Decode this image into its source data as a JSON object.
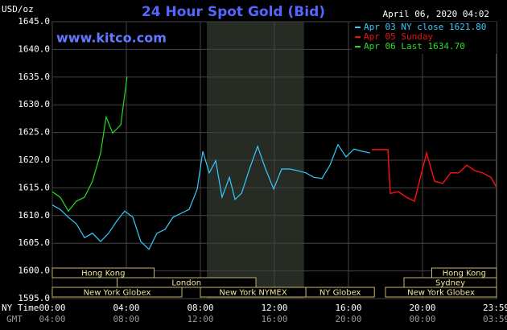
{
  "chart_data": {
    "type": "line",
    "title": "24 Hour Spot Gold (Bid)",
    "y_label": "USD/oz",
    "timestamp": "April 06, 2020 04:02",
    "watermark": "www.kitco.com",
    "x_label": "NY Time",
    "x2_label": "GMT",
    "xlim": [
      0,
      24
    ],
    "ylim": [
      1595,
      1645
    ],
    "yticks": [
      {
        "value": 1595,
        "label": "1595.0"
      },
      {
        "value": 1600,
        "label": "1600.0"
      },
      {
        "value": 1605,
        "label": "1605.0"
      },
      {
        "value": 1610,
        "label": "1610.0"
      },
      {
        "value": 1615,
        "label": "1615.0"
      },
      {
        "value": 1620,
        "label": "1620.0"
      },
      {
        "value": 1625,
        "label": "1625.0"
      },
      {
        "value": 1630,
        "label": "1630.0"
      },
      {
        "value": 1635,
        "label": "1635.0"
      },
      {
        "value": 1640,
        "label": "1640.0"
      },
      {
        "value": 1645,
        "label": "1645.0"
      }
    ],
    "xticks": [
      {
        "value": 0,
        "label": "00:00"
      },
      {
        "value": 4,
        "label": "04:00"
      },
      {
        "value": 8,
        "label": "08:00"
      },
      {
        "value": 12,
        "label": "12:00"
      },
      {
        "value": 16,
        "label": "16:00"
      },
      {
        "value": 20,
        "label": "20:00"
      },
      {
        "value": 23.98,
        "label": "23:59"
      }
    ],
    "x2ticks": [
      {
        "value": 0,
        "label": "04:00"
      },
      {
        "value": 4,
        "label": "08:00"
      },
      {
        "value": 8,
        "label": "12:00"
      },
      {
        "value": 12,
        "label": "16:00"
      },
      {
        "value": 16,
        "label": "20:00"
      },
      {
        "value": 20,
        "label": "00:00"
      },
      {
        "value": 23.98,
        "label": "03:59"
      }
    ],
    "grid": true,
    "highlight_range": [
      8.35,
      13.6
    ],
    "sessions": [
      {
        "label": "Hong Kong",
        "start": 0,
        "end": 5.5
      },
      {
        "label": "London",
        "start": 3.5,
        "end": 11
      },
      {
        "label": "New York Globex",
        "start": 0,
        "end": 7
      },
      {
        "label": "New York NYMEX",
        "start": 8,
        "end": 13.7
      },
      {
        "label": "NY Globex",
        "start": 13.7,
        "end": 17.4
      },
      {
        "label": "Hong Kong",
        "start": 20.5,
        "end": 24
      },
      {
        "label": "Sydney",
        "start": 19,
        "end": 24
      },
      {
        "label": "New York Globex",
        "start": 18,
        "end": 24
      }
    ],
    "series": [
      {
        "name": "Apr 03 NY close 1621.80",
        "color": "#33ccff",
        "x": [
          0,
          0.43,
          0.87,
          1.3,
          1.74,
          2.17,
          2.61,
          3.04,
          3.48,
          3.91,
          4.35,
          4.78,
          5.22,
          5.65,
          6.09,
          6.52,
          6.96,
          7.39,
          7.83,
          8.13,
          8.48,
          8.83,
          9.17,
          9.57,
          9.87,
          10.22,
          10.65,
          11.09,
          11.52,
          11.96,
          12.39,
          12.83,
          13.26,
          13.7,
          14.13,
          14.57,
          15,
          15.43,
          15.87,
          16.3,
          16.74,
          17.17
        ],
        "values": [
          1611.9,
          1611.1,
          1609.7,
          1608.5,
          1606,
          1606.8,
          1605.3,
          1606.8,
          1609,
          1610.8,
          1609.7,
          1605.3,
          1603.9,
          1606.8,
          1607.5,
          1609.7,
          1610.4,
          1611.1,
          1614.8,
          1621.6,
          1617.7,
          1619.9,
          1613.3,
          1616.9,
          1612.9,
          1614,
          1618.4,
          1622.5,
          1618.4,
          1614.8,
          1618.4,
          1618.4,
          1618.1,
          1617.7,
          1616.9,
          1616.7,
          1619.1,
          1622.8,
          1620.6,
          1622,
          1621.6,
          1621.3
        ]
      },
      {
        "name": "Apr 05 Sunday",
        "color": "#ee1111",
        "x": [
          17.26,
          18.13,
          18.26,
          18.7,
          19.13,
          19.57,
          19.78,
          20.22,
          20.65,
          21.09,
          21.52,
          21.96,
          22.39,
          22.83,
          23.26,
          23.7,
          23.98
        ],
        "values": [
          1621.9,
          1621.9,
          1614,
          1614.3,
          1613.3,
          1612.6,
          1615.5,
          1621.3,
          1616.2,
          1615.8,
          1617.7,
          1617.7,
          1619.1,
          1618.1,
          1617.7,
          1616.9,
          1615.2
        ]
      },
      {
        "name": "Apr 06 Last 1634.70",
        "color": "#22dd22",
        "x": [
          0,
          0.43,
          0.87,
          1.3,
          1.74,
          2.17,
          2.61,
          2.91,
          3.26,
          3.7,
          4.04
        ],
        "values": [
          1614.3,
          1613.3,
          1610.8,
          1612.6,
          1613.3,
          1616.2,
          1621.3,
          1627.8,
          1624.9,
          1626.4,
          1635.1
        ]
      }
    ]
  }
}
